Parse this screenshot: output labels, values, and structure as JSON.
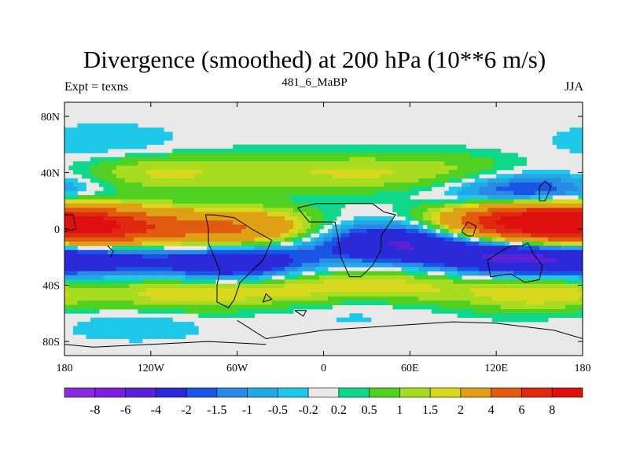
{
  "chart_data": {
    "type": "heatmap",
    "title": "Divergence (smoothed) at 200 hPa (10**6 m/s)",
    "left_label": "Expt = texns",
    "center_label": "481_6_MaBP",
    "right_label": "JJA",
    "xlim": [
      -180,
      180
    ],
    "ylim": [
      -90,
      90
    ],
    "x_ticks": [
      {
        "value": -180,
        "label": "180"
      },
      {
        "value": -120,
        "label": "120W"
      },
      {
        "value": -60,
        "label": "60W"
      },
      {
        "value": 0,
        "label": "0"
      },
      {
        "value": 60,
        "label": "60E"
      },
      {
        "value": 120,
        "label": "120E"
      },
      {
        "value": 180,
        "label": "180"
      }
    ],
    "y_ticks": [
      {
        "value": 80,
        "label": "80N"
      },
      {
        "value": 40,
        "label": "40N"
      },
      {
        "value": 0,
        "label": "0"
      },
      {
        "value": -40,
        "label": "40S"
      },
      {
        "value": -80,
        "label": "80S"
      }
    ],
    "colorbar": {
      "colors": [
        "#8a2be2",
        "#7a1fe0",
        "#5a22d8",
        "#2a2ad8",
        "#1a55e6",
        "#2a8ae6",
        "#22a8e6",
        "#1ec8e8",
        "#e8e8e8",
        "#10d88a",
        "#50d020",
        "#a8dc20",
        "#d8d81e",
        "#e0a016",
        "#e05a10",
        "#e02a10",
        "#e01010"
      ],
      "labels": [
        "-8",
        "-6",
        "-4",
        "-2",
        "-1.5",
        "-1",
        "-0.5",
        "-0.2",
        "0.2",
        "0.5",
        "1",
        "1.5",
        "2",
        "4",
        "6",
        "8"
      ]
    },
    "field_features": [
      {
        "lon": -150,
        "lat": 0,
        "value": 6
      },
      {
        "lon": -60,
        "lat": 0,
        "value": 4
      },
      {
        "lon": 160,
        "lat": 5,
        "value": 6
      },
      {
        "lon": 130,
        "lat": 5,
        "value": 5
      },
      {
        "lon": -160,
        "lat": -20,
        "value": -3
      },
      {
        "lon": -60,
        "lat": -25,
        "value": -4
      },
      {
        "lon": 50,
        "lat": -10,
        "value": -4
      },
      {
        "lon": 130,
        "lat": -20,
        "value": -4
      },
      {
        "lon": 140,
        "lat": 25,
        "value": -3
      },
      {
        "lon": -120,
        "lat": 40,
        "value": 1.5
      },
      {
        "lon": -40,
        "lat": 40,
        "value": 1
      },
      {
        "lon": 30,
        "lat": 40,
        "value": 1.2
      },
      {
        "lon": 100,
        "lat": 40,
        "value": 1
      },
      {
        "lon": -100,
        "lat": -45,
        "value": 2
      },
      {
        "lon": -20,
        "lat": -40,
        "value": 2
      },
      {
        "lon": 60,
        "lat": -40,
        "value": 1.5
      },
      {
        "lon": 150,
        "lat": -45,
        "value": 2
      },
      {
        "lon": -150,
        "lat": 60,
        "value": -0.6
      },
      {
        "lon": -130,
        "lat": -65,
        "value": -0.6
      },
      {
        "lon": 20,
        "lat": -55,
        "value": -0.5
      }
    ]
  }
}
